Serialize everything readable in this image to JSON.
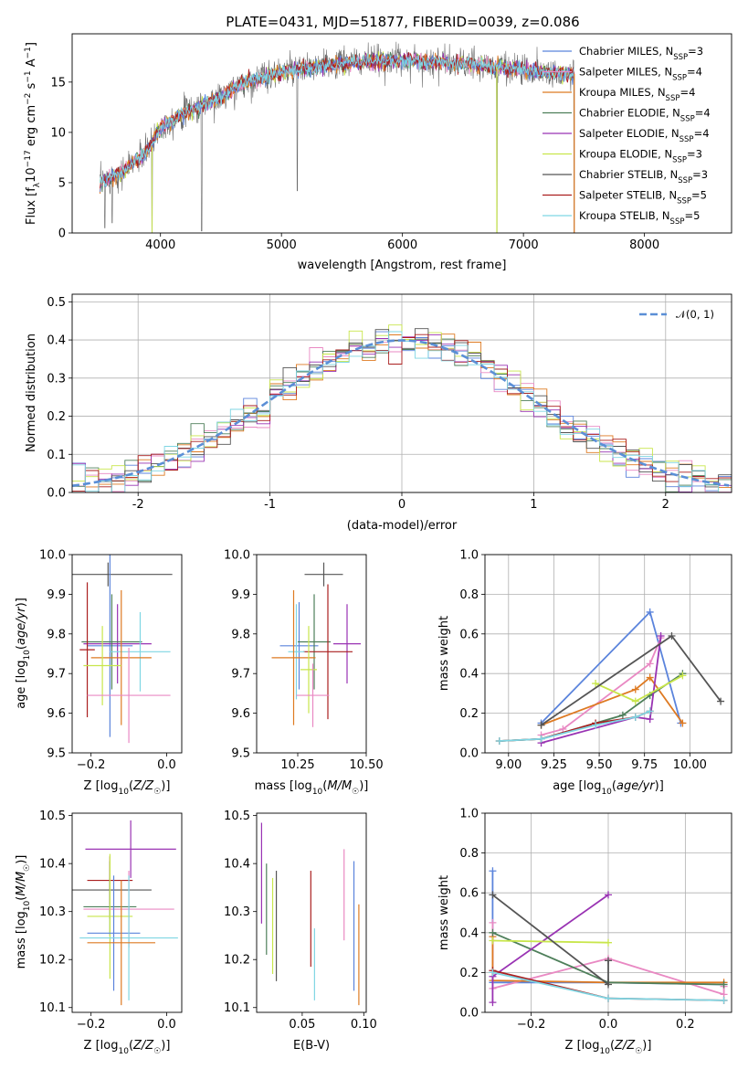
{
  "title": "PLATE=0431, MJD=51877, FIBERID=0039, z=0.086",
  "colors": {
    "chabrier_miles": "#5b84dc",
    "salpeter_miles": "#e989c3",
    "kroupa_miles": "#de7a22",
    "chabrier_elodie": "#4e7f5a",
    "salpeter_elodie": "#9933b3",
    "kroupa_elodie": "#c8e64b",
    "chabrier_stelib": "#555555",
    "salpeter_stelib": "#aa1f1f",
    "kroupa_stelib": "#7fd6e3",
    "gaussian": "#5b8fd6"
  },
  "chart_data": [
    {
      "type": "line",
      "name": "spectrum",
      "xlabel": "wavelength [Angstrom, rest frame]",
      "ylabel": "Flux [f_λ 10^-17 erg cm^-2 s^-1 A^-1]",
      "xlim": [
        3270,
        8720
      ],
      "ylim": [
        0,
        19.8
      ],
      "xticks": [
        4000,
        5000,
        6000,
        7000,
        8000
      ],
      "yticks": [
        0,
        5,
        10,
        15
      ],
      "legend_position": "top-right",
      "series": [
        {
          "name": "Chabrier MILES, N_SSP=3",
          "key": "chabrier_miles"
        },
        {
          "name": "Salpeter MILES, N_SSP=4",
          "key": "salpeter_miles"
        },
        {
          "name": "Kroupa MILES, N_SSP=4",
          "key": "kroupa_miles"
        },
        {
          "name": "Chabrier ELODIE, N_SSP=4",
          "key": "chabrier_elodie"
        },
        {
          "name": "Salpeter ELODIE, N_SSP=4",
          "key": "salpeter_elodie"
        },
        {
          "name": "Kroupa ELODIE, N_SSP=3",
          "key": "kroupa_elodie"
        },
        {
          "name": "Chabrier STELIB, N_SSP=3",
          "key": "chabrier_stelib"
        },
        {
          "name": "Salpeter STELIB, N_SSP=5",
          "key": "salpeter_stelib"
        },
        {
          "name": "Kroupa STELIB, N_SSP=5",
          "key": "kroupa_stelib"
        }
      ],
      "continuum": [
        [
          3500,
          5.0
        ],
        [
          3700,
          6.2
        ],
        [
          3900,
          8.3
        ],
        [
          4000,
          10.5
        ],
        [
          4200,
          12.0
        ],
        [
          4500,
          13.5
        ],
        [
          4700,
          15.0
        ],
        [
          5000,
          16.0
        ],
        [
          5300,
          16.5
        ],
        [
          5600,
          17.0
        ],
        [
          6000,
          17.2
        ],
        [
          6400,
          16.9
        ],
        [
          6800,
          16.5
        ],
        [
          7200,
          16.0
        ],
        [
          7400,
          15.8
        ]
      ],
      "dips": [
        [
          3540,
          0.5
        ],
        [
          3600,
          1.0
        ],
        [
          3930,
          0.0
        ],
        [
          4340,
          0.2
        ],
        [
          5130,
          4.2
        ],
        [
          6780,
          0.0
        ],
        [
          7420,
          0.0
        ]
      ]
    },
    {
      "type": "histogram",
      "name": "residuals",
      "xlabel": "(data-model)/error",
      "ylabel": "Normed distribution",
      "xlim": [
        -2.5,
        2.5
      ],
      "ylim": [
        0,
        0.52
      ],
      "xticks": [
        -2,
        -1,
        0,
        1,
        2
      ],
      "yticks": [
        0.0,
        0.1,
        0.2,
        0.3,
        0.4,
        0.5
      ],
      "ytick_labels": [
        "0.0",
        "0.1",
        "0.2",
        "0.3",
        "0.4",
        "0.5"
      ],
      "legend": "𝒩(0, 1)",
      "legend_position": "top-right",
      "bin_width": 0.1,
      "grid": true
    },
    {
      "type": "scatter",
      "name": "age-vs-Z",
      "xlabel": "Z [log10(Z/Z☉)]",
      "ylabel": "age  [log10(age/yr)]",
      "xlim": [
        -0.25,
        0.04
      ],
      "ylim": [
        9.5,
        10.0
      ],
      "xticks": [
        -0.2,
        0.0
      ],
      "xtick_labels": [
        "−0.2",
        "0.0"
      ],
      "yticks": [
        9.5,
        9.6,
        9.7,
        9.8,
        9.9,
        10.0
      ],
      "ytick_labels": [
        "9.5",
        "9.6",
        "9.7",
        "9.8",
        "9.9",
        "10.0"
      ],
      "points": [
        {
          "key": "chabrier_stelib",
          "x": -0.155,
          "y": 9.95,
          "xerr": 0.17,
          "yerr": 0.03
        },
        {
          "key": "chabrier_miles",
          "x": -0.15,
          "y": 9.77,
          "xerr": 0.06,
          "yerr": 0.23
        },
        {
          "key": "salpeter_elodie",
          "x": -0.13,
          "y": 9.775,
          "xerr": 0.09,
          "yerr": 0.1
        },
        {
          "key": "chabrier_elodie",
          "x": -0.145,
          "y": 9.78,
          "xerr": 0.08,
          "yerr": 0.12
        },
        {
          "key": "salpeter_stelib",
          "x": -0.21,
          "y": 9.76,
          "xerr": 0.02,
          "yerr": 0.17
        },
        {
          "key": "kroupa_stelib",
          "x": -0.07,
          "y": 9.755,
          "xerr": 0.08,
          "yerr": 0.1
        },
        {
          "key": "kroupa_miles",
          "x": -0.12,
          "y": 9.74,
          "xerr": 0.08,
          "yerr": 0.17
        },
        {
          "key": "kroupa_elodie",
          "x": -0.17,
          "y": 9.72,
          "xerr": 0.05,
          "yerr": 0.1
        },
        {
          "key": "salpeter_miles",
          "x": -0.1,
          "y": 9.645,
          "xerr": 0.11,
          "yerr": 0.12
        }
      ]
    },
    {
      "type": "scatter",
      "name": "age-vs-mass",
      "xlabel": "mass [log10(M/M☉)]",
      "xlim": [
        10.1,
        10.5
      ],
      "ylim": [
        9.5,
        10.0
      ],
      "xticks": [
        10.25,
        10.5
      ],
      "xtick_labels": [
        "10.25",
        "10.50"
      ],
      "yticks": [
        9.5,
        9.6,
        9.7,
        9.8,
        9.9,
        10.0
      ],
      "ytick_labels": [
        "9.5",
        "9.6",
        "9.7",
        "9.8",
        "9.9",
        "10.0"
      ],
      "points": [
        {
          "key": "chabrier_stelib",
          "x": 10.345,
          "y": 9.95,
          "xerr": 0.07,
          "yerr": 0.03
        },
        {
          "key": "chabrier_miles",
          "x": 10.255,
          "y": 9.77,
          "xerr": 0.07,
          "yerr": 0.11
        },
        {
          "key": "salpeter_elodie",
          "x": 10.43,
          "y": 9.775,
          "xerr": 0.05,
          "yerr": 0.1
        },
        {
          "key": "chabrier_elodie",
          "x": 10.31,
          "y": 9.78,
          "xerr": 0.06,
          "yerr": 0.12
        },
        {
          "key": "salpeter_stelib",
          "x": 10.36,
          "y": 9.755,
          "xerr": 0.09,
          "yerr": 0.17
        },
        {
          "key": "kroupa_stelib",
          "x": 10.245,
          "y": 9.755,
          "xerr": 0.03,
          "yerr": 0.12
        },
        {
          "key": "kroupa_miles",
          "x": 10.235,
          "y": 9.74,
          "xerr": 0.08,
          "yerr": 0.17
        },
        {
          "key": "kroupa_elodie",
          "x": 10.29,
          "y": 9.71,
          "xerr": 0.03,
          "yerr": 0.11
        },
        {
          "key": "salpeter_miles",
          "x": 10.305,
          "y": 9.645,
          "xerr": 0.06,
          "yerr": 0.08
        }
      ]
    },
    {
      "type": "line",
      "name": "weight-vs-age",
      "xlabel": "age  [log10(age/yr)]",
      "ylabel": "mass weight",
      "xlim": [
        8.87,
        10.23
      ],
      "ylim": [
        0,
        1.0
      ],
      "xticks": [
        9.0,
        9.25,
        9.5,
        9.75,
        10.0
      ],
      "xtick_labels": [
        "9.00",
        "9.25",
        "9.50",
        "9.75",
        "10.00"
      ],
      "yticks": [
        0,
        0.2,
        0.4,
        0.6,
        0.8,
        1.0
      ],
      "ytick_labels": [
        "0.0",
        "0.2",
        "0.4",
        "0.6",
        "0.8",
        "1.0"
      ],
      "grid": true,
      "series": [
        {
          "key": "chabrier_miles",
          "x": [
            9.18,
            9.78,
            9.95
          ],
          "y": [
            0.15,
            0.71,
            0.15
          ]
        },
        {
          "key": "salpeter_miles",
          "x": [
            9.18,
            9.3,
            9.78,
            9.84
          ],
          "y": [
            0.09,
            0.12,
            0.45,
            0.58
          ]
        },
        {
          "key": "kroupa_miles",
          "x": [
            9.18,
            9.7,
            9.78,
            9.96
          ],
          "y": [
            0.14,
            0.32,
            0.38,
            0.15
          ]
        },
        {
          "key": "chabrier_elodie",
          "x": [
            8.95,
            9.18,
            9.63,
            9.78,
            9.96
          ],
          "y": [
            0.06,
            0.07,
            0.19,
            0.29,
            0.4
          ]
        },
        {
          "key": "salpeter_elodie",
          "x": [
            9.18,
            9.7,
            9.78,
            9.84
          ],
          "y": [
            0.05,
            0.18,
            0.17,
            0.59
          ]
        },
        {
          "key": "kroupa_elodie",
          "x": [
            9.48,
            9.7,
            9.96
          ],
          "y": [
            0.35,
            0.26,
            0.39
          ]
        },
        {
          "key": "chabrier_stelib",
          "x": [
            9.18,
            9.9,
            10.17
          ],
          "y": [
            0.14,
            0.59,
            0.26
          ]
        },
        {
          "key": "salpeter_stelib",
          "x": [
            8.95,
            9.18,
            9.48,
            9.7,
            9.78
          ],
          "y": [
            0.06,
            0.07,
            0.15,
            0.18,
            0.21
          ]
        },
        {
          "key": "kroupa_stelib",
          "x": [
            8.95,
            9.18,
            9.48,
            9.7,
            9.78
          ],
          "y": [
            0.06,
            0.07,
            0.14,
            0.18,
            0.21
          ]
        }
      ]
    },
    {
      "type": "scatter",
      "name": "mass-vs-Z",
      "xlabel": "Z [log10(Z/Z☉)]",
      "ylabel": "mass [log10(M/M☉)]",
      "xlim": [
        -0.25,
        0.04
      ],
      "ylim": [
        10.09,
        10.505
      ],
      "xticks": [
        -0.2,
        0.0
      ],
      "xtick_labels": [
        "−0.2",
        "0.0"
      ],
      "yticks": [
        10.1,
        10.2,
        10.3,
        10.4,
        10.5
      ],
      "ytick_labels": [
        "10.1",
        "10.2",
        "10.3",
        "10.4",
        "10.5"
      ],
      "points": [
        {
          "key": "salpeter_elodie",
          "x": -0.095,
          "y": 10.43,
          "xerr": 0.12,
          "yerr": 0.06
        },
        {
          "key": "salpeter_stelib",
          "x": -0.15,
          "y": 10.365,
          "xerr": 0.06,
          "yerr": 0.05
        },
        {
          "key": "chabrier_stelib",
          "x": -0.15,
          "y": 10.345,
          "xerr": 0.11,
          "yerr": 0.06
        },
        {
          "key": "chabrier_elodie",
          "x": -0.15,
          "y": 10.31,
          "xerr": 0.07,
          "yerr": 0.06
        },
        {
          "key": "salpeter_miles",
          "x": -0.1,
          "y": 10.305,
          "xerr": 0.12,
          "yerr": 0.08
        },
        {
          "key": "kroupa_elodie",
          "x": -0.15,
          "y": 10.29,
          "xerr": 0.06,
          "yerr": 0.13
        },
        {
          "key": "chabrier_miles",
          "x": -0.14,
          "y": 10.255,
          "xerr": 0.07,
          "yerr": 0.12
        },
        {
          "key": "kroupa_stelib",
          "x": -0.1,
          "y": 10.245,
          "xerr": 0.13,
          "yerr": 0.13
        },
        {
          "key": "kroupa_miles",
          "x": -0.12,
          "y": 10.235,
          "xerr": 0.09,
          "yerr": 0.13
        }
      ]
    },
    {
      "type": "errorbar",
      "name": "mass-vs-ebv",
      "xlabel": "E(B-V)",
      "xlim": [
        0.013,
        0.102
      ],
      "ylim": [
        10.09,
        10.505
      ],
      "xticks": [
        0.05,
        0.1
      ],
      "xtick_labels": [
        "0.05",
        "0.10"
      ],
      "yticks": [
        10.1,
        10.2,
        10.3,
        10.4,
        10.5
      ],
      "ytick_labels": [
        "10.1",
        "10.2",
        "10.3",
        "10.4",
        "10.5"
      ],
      "points": [
        {
          "key": "salpeter_elodie",
          "x": 0.017,
          "y": 10.38,
          "yerr": 0.105
        },
        {
          "key": "chabrier_elodie",
          "x": 0.021,
          "y": 10.305,
          "yerr": 0.095
        },
        {
          "key": "kroupa_elodie",
          "x": 0.026,
          "y": 10.27,
          "yerr": 0.1
        },
        {
          "key": "chabrier_stelib",
          "x": 0.029,
          "y": 10.27,
          "yerr": 0.115
        },
        {
          "key": "salpeter_stelib",
          "x": 0.057,
          "y": 10.285,
          "yerr": 0.1
        },
        {
          "key": "kroupa_stelib",
          "x": 0.06,
          "y": 10.19,
          "yerr": 0.075
        },
        {
          "key": "salpeter_miles",
          "x": 0.084,
          "y": 10.335,
          "yerr": 0.095
        },
        {
          "key": "chabrier_miles",
          "x": 0.092,
          "y": 10.27,
          "yerr": 0.135
        },
        {
          "key": "kroupa_miles",
          "x": 0.096,
          "y": 10.21,
          "yerr": 0.105
        }
      ]
    },
    {
      "type": "line",
      "name": "weight-vs-Z",
      "xlabel": "Z [log10(Z/Z☉)]",
      "ylabel": "mass weight",
      "xlim": [
        -0.32,
        0.32
      ],
      "ylim": [
        0,
        1.0
      ],
      "xticks": [
        -0.2,
        0.0,
        0.2
      ],
      "xtick_labels": [
        "−0.2",
        "0.0",
        "0.2"
      ],
      "yticks": [
        0,
        0.2,
        0.4,
        0.6,
        0.8,
        1.0
      ],
      "ytick_labels": [
        "0.0",
        "0.2",
        "0.4",
        "0.6",
        "0.8",
        "1.0"
      ],
      "grid": true,
      "series": [
        {
          "key": "chabrier_miles",
          "x": [
            -0.3,
            -0.3,
            0.0,
            0.3
          ],
          "y": [
            0.71,
            0.15,
            0.15,
            0.14
          ]
        },
        {
          "key": "salpeter_miles",
          "x": [
            -0.3,
            -0.3,
            0.0,
            0.3,
            0.3
          ],
          "y": [
            0.45,
            0.12,
            0.27,
            0.09,
            0.13
          ]
        },
        {
          "key": "kroupa_miles",
          "x": [
            -0.3,
            -0.3,
            0.0,
            0.3
          ],
          "y": [
            0.38,
            0.16,
            0.15,
            0.15
          ]
        },
        {
          "key": "chabrier_elodie",
          "x": [
            -0.3,
            0.0,
            0.3
          ],
          "y": [
            0.4,
            0.15,
            0.14
          ]
        },
        {
          "key": "salpeter_elodie",
          "x": [
            -0.3,
            -0.3,
            0.0
          ],
          "y": [
            0.05,
            0.18,
            0.59
          ]
        },
        {
          "key": "kroupa_elodie",
          "x": [
            -0.3,
            0.0
          ],
          "y": [
            0.36,
            0.35
          ]
        },
        {
          "key": "chabrier_stelib",
          "x": [
            -0.3,
            0.0,
            0.0
          ],
          "y": [
            0.59,
            0.14,
            0.26
          ]
        },
        {
          "key": "salpeter_stelib",
          "x": [
            -0.3,
            0.0,
            0.3
          ],
          "y": [
            0.21,
            0.07,
            0.06
          ]
        },
        {
          "key": "kroupa_stelib",
          "x": [
            -0.3,
            0.0,
            0.3
          ],
          "y": [
            0.2,
            0.07,
            0.06
          ]
        }
      ]
    }
  ]
}
